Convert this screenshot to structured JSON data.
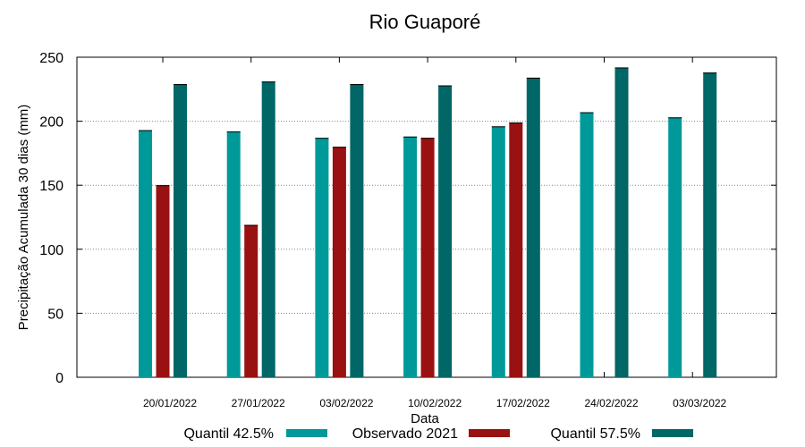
{
  "chart_data": {
    "type": "bar",
    "title": "Rio Guaporé",
    "xlabel": "Data",
    "ylabel": "Precipitação Acumulada 30 dias (mm)",
    "ylim": [
      0,
      250
    ],
    "yticks": [
      0,
      50,
      100,
      150,
      200,
      250
    ],
    "grid": "horizontal dotted",
    "legend": "bottom",
    "categories": [
      "20/01/2022",
      "27/01/2022",
      "03/02/2022",
      "10/02/2022",
      "17/02/2022",
      "24/02/2022",
      "03/03/2022"
    ],
    "series": [
      {
        "name": "Quantil 42.5%",
        "color": "#009999",
        "values": [
          193,
          192,
          187,
          188,
          196,
          207,
          203
        ]
      },
      {
        "name": "Observado 2021",
        "color": "#991111",
        "values": [
          150,
          119,
          180,
          187,
          199,
          null,
          null
        ]
      },
      {
        "name": "Quantil 57.5%",
        "color": "#006666",
        "values": [
          229,
          231,
          229,
          228,
          234,
          242,
          238
        ]
      }
    ]
  }
}
